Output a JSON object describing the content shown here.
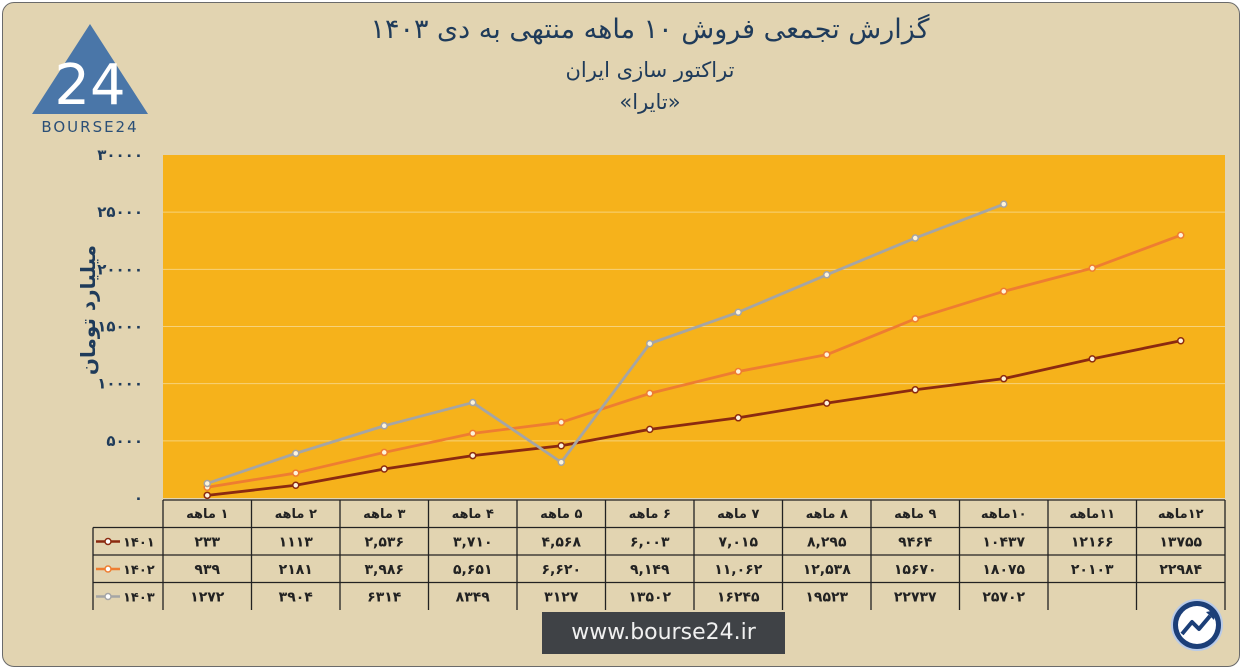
{
  "header": {
    "title": "گزارش تجمعی فروش ۱۰ ماهه منتهی به دی ۱۴۰۳",
    "company": "تراکتور سازی ایران",
    "ticker": "«تایرا»"
  },
  "logo": {
    "text": "BOURSE24",
    "mark": "24"
  },
  "footer": {
    "url": "www.bourse24.ir"
  },
  "icons": {
    "chart_badge": "trend-up-icon"
  },
  "colors": {
    "background": "#e2d4b1",
    "plot": "#f6b21b",
    "title": "#1f3b5a"
  },
  "chart_data": {
    "type": "line",
    "ylabel": "میلیارد تومان",
    "ylim": [
      0,
      30000
    ],
    "yticks": [
      "۳۰۰۰۰",
      "۲۵۰۰۰",
      "۲۰۰۰۰",
      "۱۵۰۰۰",
      "۱۰۰۰۰",
      "۵۰۰۰",
      "۰"
    ],
    "categories": [
      "۱ ماهه",
      "۲ ماهه",
      "۳ ماهه",
      "۴ ماهه",
      "۵ ماهه",
      "۶ ماهه",
      "۷ ماهه",
      "۸ ماهه",
      "۹ ماهه",
      "۱۰ماهه",
      "۱۱ماهه",
      "۱۲ماهه"
    ],
    "grid": true,
    "legend": "data-table-left",
    "series": [
      {
        "name": "۱۴۰۱",
        "color": "#8b2a10",
        "values": [
          233,
          1113,
          2536,
          3710,
          4568,
          6003,
          7015,
          8295,
          9464,
          10437,
          12166,
          13755
        ],
        "labels": [
          "۲۳۳",
          "۱۱۱۳",
          "۲,۵۳۶",
          "۳,۷۱۰",
          "۴,۵۶۸",
          "۶,۰۰۳",
          "۷,۰۱۵",
          "۸,۲۹۵",
          "۹۴۶۴",
          "۱۰۴۳۷",
          "۱۲۱۶۶",
          "۱۳۷۵۵"
        ]
      },
      {
        "name": "۱۴۰۲",
        "color": "#ee7d31",
        "values": [
          939,
          2181,
          3986,
          5651,
          6620,
          9149,
          11062,
          12538,
          15670,
          18075,
          20103,
          22984
        ],
        "labels": [
          "۹۳۹",
          "۲۱۸۱",
          "۳,۹۸۶",
          "۵,۶۵۱",
          "۶,۶۲۰",
          "۹,۱۴۹",
          "۱۱,۰۶۲",
          "۱۲,۵۳۸",
          "۱۵۶۷۰",
          "۱۸۰۷۵",
          "۲۰۱۰۳",
          "۲۲۹۸۴"
        ]
      },
      {
        "name": "۱۴۰۳",
        "color": "#a5a5a5",
        "values": [
          1272,
          3904,
          6314,
          8349,
          3127,
          13502,
          16245,
          19523,
          22737,
          25702,
          null,
          null
        ],
        "labels": [
          "۱۲۷۲",
          "۳۹۰۴",
          "۶۳۱۴",
          "۸۳۴۹",
          "۳۱۲۷",
          "۱۳۵۰۲",
          "۱۶۲۴۵",
          "۱۹۵۲۳",
          "۲۲۷۳۷",
          "۲۵۷۰۲",
          "",
          ""
        ]
      }
    ]
  }
}
